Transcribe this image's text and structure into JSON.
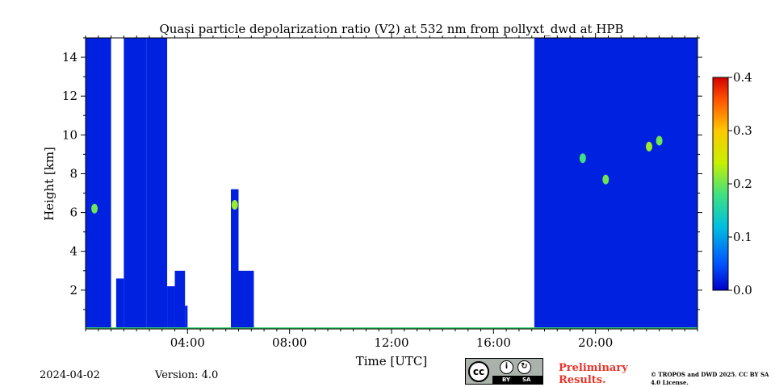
{
  "chart_data": {
    "type": "heatmap",
    "title": "Quasi particle depolarization ratio (V2) at 532 nm from pollyxt_dwd at HPB",
    "xlabel": "Time [UTC]",
    "ylabel": "Height [km]",
    "xlim": [
      0,
      24
    ],
    "ylim": [
      0,
      15
    ],
    "x_ticks": [
      4,
      8,
      12,
      16,
      20
    ],
    "x_tick_labels": [
      "04:00",
      "08:00",
      "12:00",
      "16:00",
      "20:00"
    ],
    "y_ticks": [
      2,
      4,
      6,
      8,
      10,
      12,
      14
    ],
    "y_tick_labels": [
      "2",
      "4",
      "6",
      "8",
      "10",
      "12",
      "14"
    ],
    "colorbar": {
      "range": [
        0.0,
        0.4
      ],
      "ticks": [
        0.0,
        0.1,
        0.2,
        0.3,
        0.4
      ],
      "tick_labels": [
        "0.0",
        "0.1",
        "0.2",
        "0.3",
        "0.4"
      ],
      "colormap": "jet"
    },
    "background_value": 0.02,
    "data_blocks": [
      {
        "t_start": 0.0,
        "t_end": 1.0,
        "h_top": 15.0,
        "value": 0.02
      },
      {
        "t_start": 1.2,
        "t_end": 1.5,
        "h_top": 2.6,
        "value": 0.02
      },
      {
        "t_start": 1.5,
        "t_end": 2.4,
        "h_top": 15.0,
        "value": 0.02
      },
      {
        "t_start": 2.4,
        "t_end": 3.2,
        "h_top": 15.0,
        "value": 0.02
      },
      {
        "t_start": 3.2,
        "t_end": 3.5,
        "h_top": 2.2,
        "value": 0.02
      },
      {
        "t_start": 3.5,
        "t_end": 3.9,
        "h_top": 3.0,
        "value": 0.02
      },
      {
        "t_start": 3.9,
        "t_end": 4.0,
        "h_top": 1.2,
        "value": 0.02
      },
      {
        "t_start": 5.7,
        "t_end": 6.0,
        "h_top": 7.2,
        "value": 0.02
      },
      {
        "t_start": 6.0,
        "t_end": 6.6,
        "h_top": 3.0,
        "value": 0.02
      },
      {
        "t_start": 17.6,
        "t_end": 24.0,
        "h_top": 15.0,
        "value": 0.02
      }
    ],
    "features": [
      {
        "t": 0.35,
        "h": 6.2,
        "value": 0.2
      },
      {
        "t": 5.85,
        "h": 6.4,
        "value": 0.22
      },
      {
        "t": 19.5,
        "h": 8.8,
        "value": 0.18
      },
      {
        "t": 20.4,
        "h": 7.7,
        "value": 0.2
      },
      {
        "t": 22.1,
        "h": 9.4,
        "value": 0.22
      },
      {
        "t": 22.5,
        "h": 9.7,
        "value": 0.2
      }
    ],
    "grid": false
  },
  "footer": {
    "date": "2024-04-02",
    "version": "Version: 4.0",
    "preliminary": "Preliminary Results.",
    "copyright": "© TROPOS and DWD 2025. CC BY SA 4.0 License.",
    "license_logo_text": "cc",
    "license_by": "BY",
    "license_sa": "SA"
  }
}
